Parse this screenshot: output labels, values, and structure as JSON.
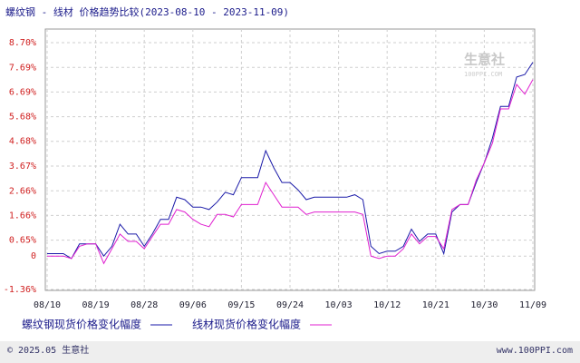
{
  "chart_data": {
    "type": "line",
    "title": "螺纹钢 - 线材 价格趋势比较(2023-08-10 - 2023-11-09)",
    "watermark": "生意社",
    "watermark_sub": "100PPI.COM",
    "footer_left": "© 2025.05 生意社",
    "footer_right": "www.100PPI.com",
    "categories": [
      "08/10",
      null,
      null,
      null,
      null,
      null,
      "08/19",
      null,
      null,
      null,
      null,
      null,
      "08/28",
      null,
      null,
      null,
      null,
      null,
      "09/06",
      null,
      null,
      null,
      null,
      null,
      "09/15",
      null,
      null,
      null,
      null,
      null,
      "09/24",
      null,
      null,
      null,
      null,
      null,
      "10/03",
      null,
      null,
      null,
      null,
      null,
      "10/12",
      null,
      null,
      null,
      null,
      null,
      "10/21",
      null,
      null,
      null,
      null,
      null,
      "10/30",
      null,
      null,
      null,
      null,
      null,
      "11/09"
    ],
    "series": [
      {
        "name": "螺纹钢现货价格变化幅度",
        "color": "#1a1aa8",
        "values": [
          0.1,
          0.1,
          0.1,
          -0.1,
          0.5,
          0.5,
          0.5,
          0.0,
          0.4,
          1.3,
          0.9,
          0.9,
          0.4,
          0.9,
          1.5,
          1.5,
          2.4,
          2.3,
          2.0,
          2.0,
          1.9,
          2.2,
          2.6,
          2.5,
          3.2,
          3.2,
          3.2,
          4.3,
          3.6,
          3.0,
          3.0,
          2.7,
          2.3,
          2.4,
          2.4,
          2.4,
          2.4,
          2.4,
          2.5,
          2.3,
          0.4,
          0.1,
          0.2,
          0.2,
          0.4,
          1.1,
          0.6,
          0.9,
          0.9,
          0.1,
          1.8,
          2.1,
          2.1,
          3.0,
          3.8,
          4.8,
          6.1,
          6.1,
          7.3,
          7.4,
          7.9
        ]
      },
      {
        "name": "线材现货价格变化幅度",
        "color": "#e020d0",
        "values": [
          0.0,
          0.0,
          0.0,
          -0.1,
          0.4,
          0.5,
          0.5,
          -0.3,
          0.3,
          0.9,
          0.6,
          0.6,
          0.3,
          0.8,
          1.3,
          1.3,
          1.9,
          1.8,
          1.5,
          1.3,
          1.2,
          1.7,
          1.7,
          1.6,
          2.1,
          2.1,
          2.1,
          3.0,
          2.5,
          2.0,
          2.0,
          2.0,
          1.7,
          1.8,
          1.8,
          1.8,
          1.8,
          1.8,
          1.8,
          1.7,
          0.0,
          -0.1,
          0.0,
          0.0,
          0.3,
          0.9,
          0.5,
          0.8,
          0.8,
          0.3,
          1.9,
          2.1,
          2.1,
          3.1,
          3.8,
          4.6,
          6.0,
          6.0,
          7.0,
          6.6,
          7.2
        ]
      }
    ],
    "ylim": [
      -1.36,
      8.7
    ],
    "yticks": [
      {
        "value": -1.36,
        "label": "-1.36%"
      },
      0,
      {
        "value": 0.65,
        "label": "0.65%"
      },
      {
        "value": 1.66,
        "label": "1.66%"
      },
      {
        "value": 2.66,
        "label": "2.66%"
      },
      {
        "value": 3.67,
        "label": "3.67%"
      },
      {
        "value": 4.68,
        "label": "4.68%"
      },
      {
        "value": 5.68,
        "label": "5.68%"
      },
      {
        "value": 6.69,
        "label": "6.69%"
      },
      {
        "value": 7.69,
        "label": "7.69%"
      },
      {
        "value": 8.7,
        "label": "8.70%"
      }
    ],
    "grid": true
  }
}
